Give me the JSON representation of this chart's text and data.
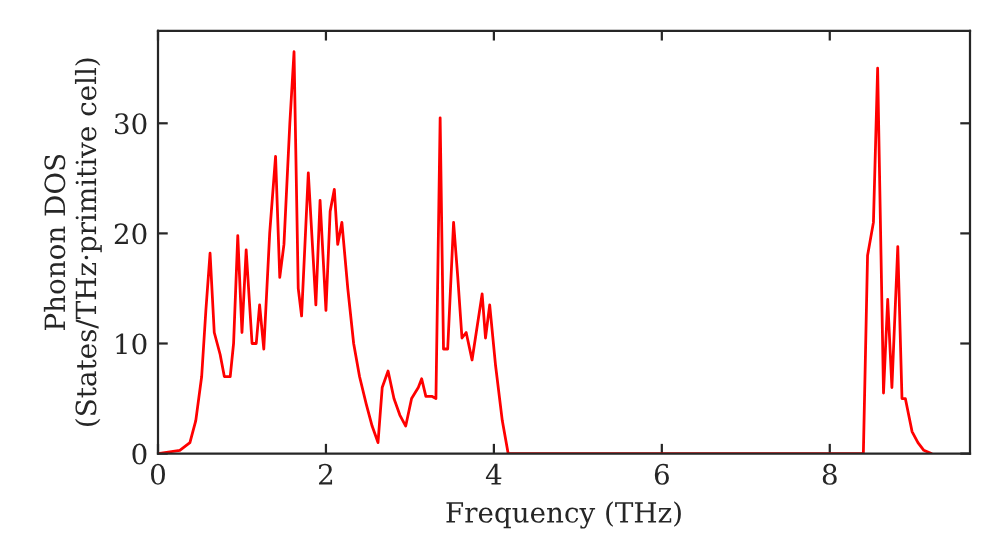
{
  "chart_data": {
    "type": "line",
    "xlabel": "Frequency (THz)",
    "ylabel": "Phonon DOS\n(States/THz·primitive cell)",
    "x": [
      0,
      0.26,
      0.38,
      0.45,
      0.52,
      0.57,
      0.62,
      0.67,
      0.74,
      0.79,
      0.86,
      0.9,
      0.95,
      1.0,
      1.05,
      1.12,
      1.17,
      1.21,
      1.26,
      1.33,
      1.4,
      1.45,
      1.5,
      1.57,
      1.62,
      1.67,
      1.71,
      1.79,
      1.88,
      1.93,
      2.0,
      2.05,
      2.1,
      2.14,
      2.19,
      2.26,
      2.33,
      2.4,
      2.48,
      2.55,
      2.62,
      2.67,
      2.74,
      2.81,
      2.88,
      2.95,
      3.02,
      3.1,
      3.14,
      3.19,
      3.26,
      3.31,
      3.36,
      3.4,
      3.45,
      3.52,
      3.57,
      3.62,
      3.67,
      3.74,
      3.79,
      3.86,
      3.9,
      3.95,
      4.02,
      4.1,
      4.17,
      8.4,
      8.45,
      8.52,
      8.57,
      8.64,
      8.69,
      8.74,
      8.81,
      8.86,
      8.9,
      8.98,
      9.05,
      9.12,
      9.21
    ],
    "series": [
      {
        "color": "#ff0000",
        "values": [
          0,
          0.3,
          1,
          3,
          7,
          13,
          18.2,
          11,
          9,
          7,
          7,
          10,
          19.8,
          11,
          18.5,
          10,
          10,
          13.5,
          9.5,
          20,
          27,
          16,
          19,
          30,
          36.5,
          15,
          12.5,
          25.5,
          13.5,
          23,
          13,
          22,
          24,
          19,
          21,
          15,
          10,
          7,
          4.5,
          2.5,
          1,
          6,
          7.5,
          5,
          3.5,
          2.5,
          5,
          6,
          6.8,
          5.2,
          5.2,
          5,
          30.5,
          9.5,
          9.5,
          21,
          16,
          10.5,
          11,
          8.5,
          11,
          14.5,
          10.5,
          13.5,
          8,
          3,
          0,
          0,
          18,
          21,
          35,
          5.5,
          14,
          6,
          18.8,
          5,
          5,
          2,
          1,
          0.3,
          0
        ]
      }
    ],
    "xlim": [
      0,
      9.67
    ],
    "ylim": [
      0,
      38.4
    ],
    "xticks": [
      0,
      2,
      4,
      6,
      8
    ],
    "yticks": [
      0,
      10,
      20,
      30
    ],
    "grid": false,
    "legend": false
  }
}
